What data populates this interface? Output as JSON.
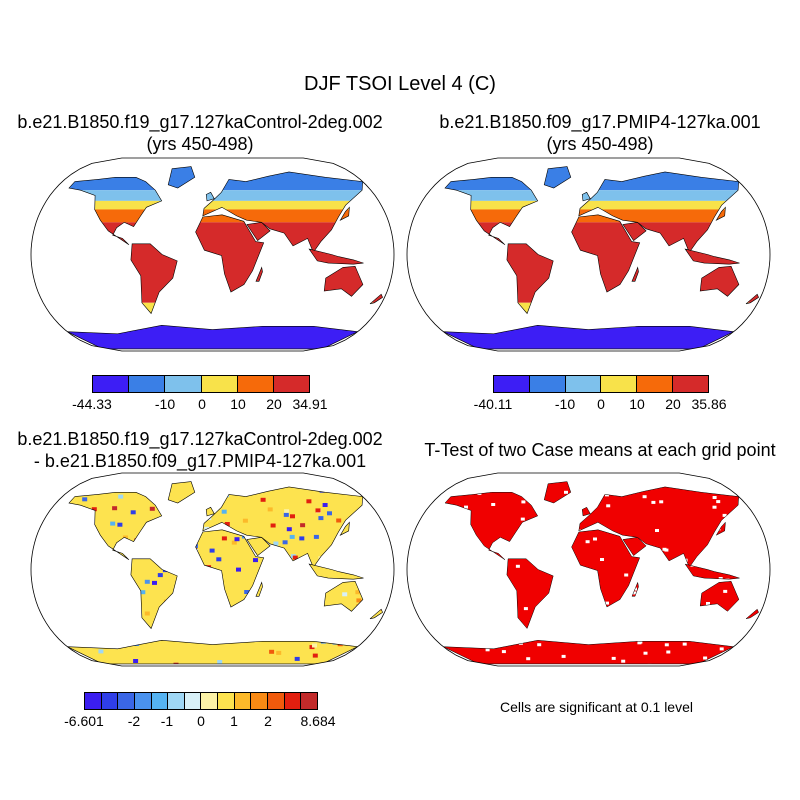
{
  "figure": {
    "title": "DJF TSOI Level 4 (C)"
  },
  "panels": [
    {
      "title_line1": "b.e21.B1850.f19_g17.127kaControl-2deg.002",
      "title_line2": "(yrs 450-498)",
      "colorbar": {
        "colors": [
          "#3d1ef5",
          "#3a7fe6",
          "#7ec1ec",
          "#f8e24a",
          "#f66a0a",
          "#d52a2a"
        ],
        "ticks": [
          "-44.33",
          "-10",
          "0",
          "10",
          "20",
          "34.91"
        ]
      }
    },
    {
      "title_line1": "b.e21.B1850.f09_g17.PMIP4-127ka.001",
      "title_line2": "(yrs 450-498)",
      "colorbar": {
        "colors": [
          "#3d1ef5",
          "#3a7fe6",
          "#7ec1ec",
          "#f8e24a",
          "#f66a0a",
          "#d52a2a"
        ],
        "ticks": [
          "-40.11",
          "-10",
          "0",
          "10",
          "20",
          "35.86"
        ]
      }
    },
    {
      "title_line1": "b.e21.B1850.f19_g17.127kaControl-2deg.002",
      "title_line2": "- b.e21.B1850.f09_g17.PMIP4-127ka.001",
      "colorbar": {
        "colors": [
          "#3b1ef0",
          "#2f3ee8",
          "#3a66e6",
          "#4a92ee",
          "#55b3f2",
          "#9fd7f5",
          "#d8f0f7",
          "#fcf2a6",
          "#fde34f",
          "#fcb92a",
          "#f98a14",
          "#f05a0c",
          "#e21f0f",
          "#c22a2a"
        ],
        "ticks": [
          "-6.601",
          "-2",
          "-1",
          "0",
          "1",
          "2",
          "8.684"
        ]
      }
    },
    {
      "title_line1": "T-Test of two Case means at each grid point",
      "note": "Cells are significant at 0.1 level",
      "color": "#f00000"
    }
  ]
}
